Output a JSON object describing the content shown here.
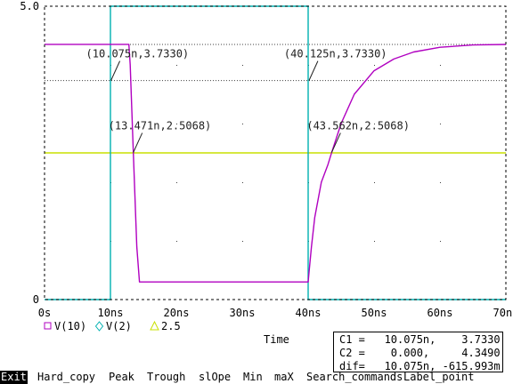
{
  "chart_data": {
    "type": "line",
    "xlim": [
      0,
      70
    ],
    "ylim": [
      0,
      5.0
    ],
    "x_ticks": [
      "0s",
      "10ns",
      "20ns",
      "30ns",
      "40ns",
      "50ns",
      "60ns",
      "70ns"
    ],
    "y_ticks": [
      "0",
      "5.0"
    ],
    "xlabel": "Time",
    "grid": "dotted",
    "series": [
      {
        "name": "V(10)",
        "color": "#b000c0",
        "marker": "square",
        "x": [
          0,
          10.0,
          11.0,
          12.0,
          12.8,
          13.0,
          13.471,
          14.0,
          14.4,
          15.0,
          40.0,
          40.125,
          40.5,
          41.0,
          42.0,
          43.0,
          43.562,
          45.0,
          47.0,
          50.0,
          53.0,
          56.0,
          60.0,
          65.0,
          70.0
        ],
        "y": [
          4.35,
          4.35,
          4.35,
          4.35,
          4.35,
          4.0,
          2.5068,
          0.9,
          0.3,
          0.3,
          0.3,
          0.45,
          0.9,
          1.4,
          2.0,
          2.3,
          2.5068,
          3.0,
          3.5,
          3.9,
          4.1,
          4.22,
          4.3,
          4.34,
          4.349
        ]
      },
      {
        "name": "V(2)",
        "color": "#00b0b0",
        "marker": "diamond",
        "x": [
          0,
          10.0,
          10.0,
          40.0,
          40.0,
          70.0
        ],
        "y": [
          0,
          0,
          5.0,
          5.0,
          0,
          0
        ]
      },
      {
        "name": "2.5",
        "color": "#c8e000",
        "marker": "triangle",
        "x": [
          0,
          70
        ],
        "y": [
          2.5,
          2.5
        ]
      }
    ],
    "annotations": [
      {
        "text": "(10.075n,3.7330)",
        "x": 10.075,
        "y": 3.733
      },
      {
        "text": "(40.125n,3.7330)",
        "x": 40.125,
        "y": 3.733
      },
      {
        "text": "(13.471n,2.5068)",
        "x": 13.471,
        "y": 2.5068
      },
      {
        "text": "(43.562n,2.5068)",
        "x": 43.562,
        "y": 2.5068
      }
    ],
    "reference_lines": [
      {
        "y": 4.349,
        "style": "dotted"
      },
      {
        "y": 3.733,
        "style": "dotted"
      }
    ]
  },
  "cursor": {
    "c1": "C1 =   10.075n,    3.7330",
    "c2": "C2 =    0.000,     4.3490",
    "dif": "dif=   10.075n, -615.993m"
  },
  "menu": {
    "items": [
      "Exit",
      "Hard_copy",
      "Peak",
      "Trough",
      "slOpe",
      "Min",
      "maX",
      "Search_commands",
      "Label_point"
    ]
  }
}
